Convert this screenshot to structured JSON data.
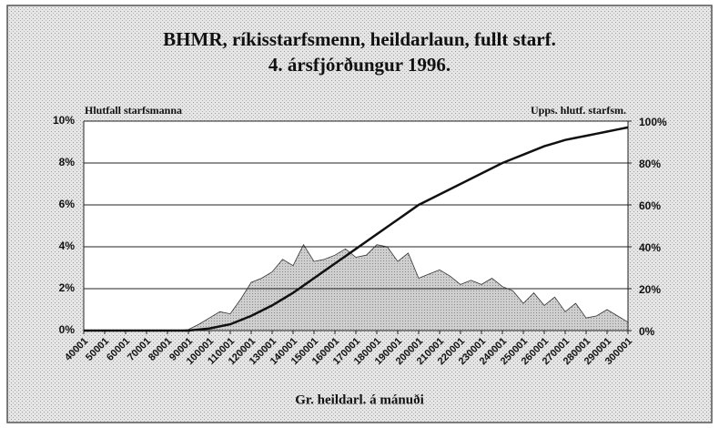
{
  "chart_data": {
    "type": "area",
    "title": "BHMR, ríkisstarfsmenn, heildarlaun, fullt starf.",
    "subtitle": "4. ársfjórðungur 1996.",
    "ylabel": "Hlutfall starfsmanna",
    "y2label": "Upps. hlutf. starfsm.",
    "xlabel": "Gr. heildarl. á mánuði",
    "x": [
      40001,
      45001,
      50001,
      55001,
      60001,
      65001,
      70001,
      75001,
      80001,
      85001,
      90001,
      95001,
      100001,
      105001,
      110001,
      115001,
      120001,
      125001,
      130001,
      135001,
      140001,
      145001,
      150001,
      155001,
      160001,
      165001,
      170001,
      175001,
      180001,
      185001,
      190001,
      195001,
      200001,
      205001,
      210001,
      215001,
      220001,
      225001,
      230001,
      235001,
      240001,
      245001,
      250001,
      255001,
      260001,
      265001,
      270001,
      275001,
      280001,
      285001,
      290001,
      295001,
      300001
    ],
    "series": [
      {
        "type": "area",
        "color": "#c4c4c4",
        "values": [
          0,
          0,
          0,
          0,
          0,
          0,
          0,
          0,
          0,
          0,
          0.05,
          0.3,
          0.6,
          0.9,
          0.8,
          1.5,
          2.3,
          2.5,
          2.8,
          3.4,
          3.1,
          4.1,
          3.3,
          3.4,
          3.6,
          3.9,
          3.5,
          3.6,
          4.1,
          4.0,
          3.3,
          3.7,
          2.5,
          2.7,
          2.9,
          2.6,
          2.2,
          2.4,
          2.2,
          2.5,
          2.1,
          1.9,
          1.3,
          1.8,
          1.2,
          1.6,
          0.9,
          1.3,
          0.6,
          0.7,
          1.0,
          0.7,
          0.4
        ]
      },
      {
        "type": "line",
        "axis": "y2",
        "color": "#111111",
        "values": [
          0,
          0,
          0,
          0,
          0,
          0,
          0,
          0,
          0,
          0,
          0,
          0.5,
          1,
          2,
          3,
          5,
          7,
          9.5,
          12,
          15,
          18,
          21.5,
          25,
          28.5,
          32,
          35.5,
          39,
          42.5,
          46,
          49.5,
          53,
          56.5,
          60,
          62.5,
          65,
          67.5,
          70,
          72.5,
          75,
          77.5,
          80,
          82,
          84,
          86,
          88,
          89.5,
          91,
          92,
          93,
          94,
          95,
          96,
          97
        ]
      }
    ],
    "xlim": [
      40001,
      300001
    ],
    "xticks": [
      40001,
      50001,
      60001,
      70001,
      80001,
      90001,
      100001,
      110001,
      120001,
      130001,
      140001,
      150001,
      160001,
      170001,
      180001,
      190001,
      200001,
      210001,
      220001,
      230001,
      240001,
      250001,
      260001,
      270001,
      280001,
      290001,
      300001
    ],
    "ylim": [
      0,
      10
    ],
    "yticks": [
      {
        "value": 0,
        "label": "0%"
      },
      {
        "value": 2,
        "label": "2%"
      },
      {
        "value": 4,
        "label": "4%"
      },
      {
        "value": 6,
        "label": "6%"
      },
      {
        "value": 8,
        "label": "8%"
      },
      {
        "value": 10,
        "label": "10%"
      }
    ],
    "y2lim": [
      0,
      100
    ],
    "y2ticks": [
      {
        "value": 0,
        "label": "0%"
      },
      {
        "value": 20,
        "label": "20%"
      },
      {
        "value": 40,
        "label": "40%"
      },
      {
        "value": 60,
        "label": "60%"
      },
      {
        "value": 80,
        "label": "80%"
      },
      {
        "value": 100,
        "label": "100%"
      }
    ],
    "grid": true
  }
}
